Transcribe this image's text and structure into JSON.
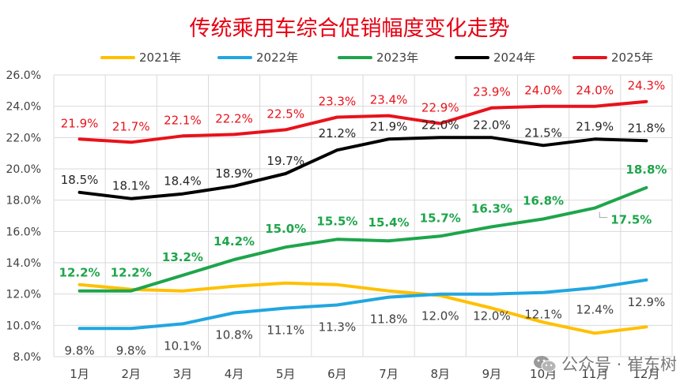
{
  "chart_data": {
    "type": "line",
    "title": "传统乘用车综合促销幅度变化走势",
    "categories": [
      "1月",
      "2月",
      "3月",
      "4月",
      "5月",
      "6月",
      "7月",
      "8月",
      "9月",
      "10月",
      "11月",
      "12月"
    ],
    "ylim": [
      8.0,
      26.0
    ],
    "yticks": [
      "8.0%",
      "10.0%",
      "12.0%",
      "14.0%",
      "16.0%",
      "18.0%",
      "20.0%",
      "22.0%",
      "24.0%",
      "26.0%"
    ],
    "grid": true,
    "legend_position": "top",
    "series": [
      {
        "name": "2021年",
        "color": "#ffc000",
        "values": [
          12.6,
          12.3,
          12.2,
          12.5,
          12.7,
          12.6,
          12.2,
          11.9,
          11.1,
          10.2,
          9.5,
          9.9
        ],
        "labels": []
      },
      {
        "name": "2022年",
        "color": "#21a6e0",
        "values": [
          9.8,
          9.8,
          10.1,
          10.8,
          11.1,
          11.3,
          11.8,
          12.0,
          12.0,
          12.1,
          12.4,
          12.9
        ],
        "labels": [
          "9.8%",
          "9.8%",
          "10.1%",
          "10.8%",
          "11.1%",
          "11.3%",
          "11.8%",
          "12.0%",
          "12.0%",
          "12.1%",
          "12.4%",
          "12.9%"
        ],
        "label_color": "#404040"
      },
      {
        "name": "2023年",
        "color": "#1ea54b",
        "values": [
          12.2,
          12.2,
          13.2,
          14.2,
          15.0,
          15.5,
          15.4,
          15.7,
          16.3,
          16.8,
          17.5,
          18.8
        ],
        "labels": [
          "12.2%",
          "12.2%",
          "13.2%",
          "14.2%",
          "15.0%",
          "15.5%",
          "15.4%",
          "15.7%",
          "16.3%",
          "16.8%",
          "17.5%",
          "18.8%"
        ],
        "label_color": "#1ea54b"
      },
      {
        "name": "2024年",
        "color": "#000000",
        "values": [
          18.5,
          18.1,
          18.4,
          18.9,
          19.7,
          21.2,
          21.9,
          22.0,
          22.0,
          21.5,
          21.9,
          21.8
        ],
        "labels": [
          "18.5%",
          "18.1%",
          "18.4%",
          "18.9%",
          "19.7%",
          "21.2%",
          "21.9%",
          "22.0%",
          "22.0%",
          "21.5%",
          "21.9%",
          "21.8%"
        ],
        "label_color": "#262626"
      },
      {
        "name": "2025年",
        "color": "#e8121b",
        "values": [
          21.9,
          21.7,
          22.1,
          22.2,
          22.5,
          23.3,
          23.4,
          22.9,
          23.9,
          24.0,
          24.0,
          24.3
        ],
        "labels": [
          "21.9%",
          "21.7%",
          "22.1%",
          "22.2%",
          "22.5%",
          "23.3%",
          "23.4%",
          "22.9%",
          "23.9%",
          "24.0%",
          "24.0%",
          "24.3%"
        ],
        "label_color": "#e8121b"
      }
    ]
  },
  "watermark": {
    "text": "公众号 · 崔东树",
    "icon": "wechat-icon"
  }
}
